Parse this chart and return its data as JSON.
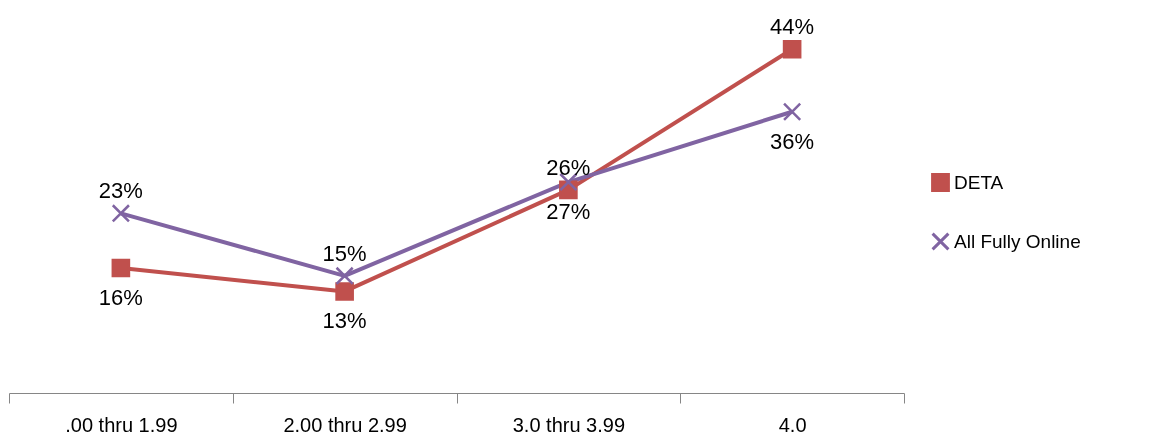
{
  "chart_data": {
    "type": "line",
    "categories": [
      ".00 thru 1.99",
      "2.00 thru 2.99",
      "3.0 thru 3.99",
      "4.0"
    ],
    "series": [
      {
        "name": "DETA",
        "color": "#c0504d",
        "marker": "square",
        "values": [
          16,
          13,
          26,
          44
        ],
        "value_labels": [
          "16%",
          "13%",
          "26%",
          "44%"
        ]
      },
      {
        "name": "All Fully Online",
        "color": "#8064a2",
        "marker": "cross",
        "values": [
          23,
          15,
          27,
          36
        ],
        "value_labels": [
          "23%",
          "15%",
          "27%",
          "36%"
        ]
      }
    ],
    "legend": "right",
    "tick_labels": "x",
    "grid": false,
    "line_style": "solid"
  }
}
